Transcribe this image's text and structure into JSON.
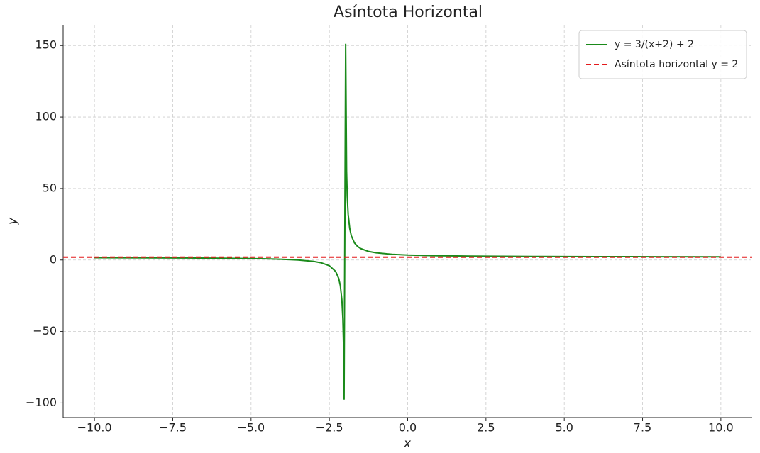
{
  "chart_data": {
    "type": "line",
    "title": "Asíntota Horizontal",
    "x_label": "x",
    "y_label": "y",
    "x": [
      -10,
      -9,
      -8,
      -7,
      -6,
      -5,
      -4.5,
      -4,
      -3.5,
      -3,
      -2.75,
      -2.5,
      -2.3,
      -2.2,
      -2.15,
      -2.1,
      -2.07,
      -2.05,
      -2.0301,
      -1.9799,
      -1.95,
      -1.93,
      -1.9,
      -1.85,
      -1.8,
      -1.7,
      -1.6,
      -1.5,
      -1.25,
      -1,
      -0.5,
      0,
      1,
      2,
      3,
      4,
      6,
      8,
      10
    ],
    "series": [
      {
        "name": "y = 3/(x+2) + 2",
        "color": "#1a8a1a",
        "values": [
          1.625,
          1.571,
          1.5,
          1.4,
          1.25,
          1,
          0.8,
          0.5,
          0,
          -1,
          -2,
          -4,
          -8,
          -13,
          -18,
          -28,
          -40.857,
          -58,
          -97.67,
          151.25,
          62,
          44.857,
          32,
          22,
          17,
          12,
          9.5,
          8,
          6,
          5,
          4,
          3.5,
          3,
          2.75,
          2.6,
          2.5,
          2.375,
          2.3,
          2.25
        ]
      }
    ],
    "reference_lines": [
      {
        "name": "Asíntota horizontal y = 2",
        "y": 2,
        "color": "#e41a1c",
        "dashed": true
      }
    ],
    "xlim": [
      -11,
      11
    ],
    "ylim": [
      -110.2,
      164.5
    ],
    "xticks": [
      {
        "value": -10,
        "label": "−10.0"
      },
      {
        "value": -7.5,
        "label": "−7.5"
      },
      {
        "value": -5,
        "label": "−5.0"
      },
      {
        "value": -2.5,
        "label": "−2.5"
      },
      {
        "value": 0,
        "label": "0.0"
      },
      2.5,
      {
        "value": 5,
        "label": "5.0"
      },
      7.5,
      {
        "value": 10,
        "label": "10.0"
      }
    ],
    "yticks": [
      {
        "value": -100,
        "label": "−100"
      },
      {
        "value": -50,
        "label": "−50"
      },
      0,
      50,
      100,
      150
    ],
    "grid": true,
    "legend": "upper right"
  }
}
